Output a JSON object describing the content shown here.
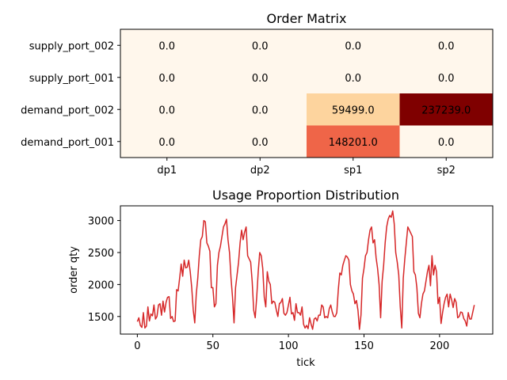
{
  "chart_data": [
    {
      "type": "heatmap",
      "title": "Order Matrix",
      "xlabel": "",
      "ylabel": "",
      "x_categories": [
        "dp1",
        "dp2",
        "sp1",
        "sp2"
      ],
      "y_categories": [
        "supply_port_002",
        "supply_port_001",
        "demand_port_002",
        "demand_port_001"
      ],
      "values": [
        [
          0.0,
          0.0,
          0.0,
          0.0
        ],
        [
          0.0,
          0.0,
          0.0,
          0.0
        ],
        [
          0.0,
          0.0,
          59499.0,
          237239.0
        ],
        [
          0.0,
          0.0,
          148201.0,
          0.0
        ]
      ],
      "cell_labels": [
        [
          "0.0",
          "0.0",
          "0.0",
          "0.0"
        ],
        [
          "0.0",
          "0.0",
          "0.0",
          "0.0"
        ],
        [
          "0.0",
          "0.0",
          "59499.0",
          "237239.0"
        ],
        [
          "0.0",
          "0.0",
          "148201.0",
          "0.0"
        ]
      ],
      "colormap": "OrRd",
      "vmin": 0,
      "vmax": 237239.0
    },
    {
      "type": "line",
      "title": "Usage Proportion Distribution",
      "xlabel": "tick",
      "ylabel": "order qty",
      "xlim": [
        -11.2,
        235.2
      ],
      "ylim": [
        1225,
        3230
      ],
      "xticks": [
        0,
        50,
        100,
        150,
        200
      ],
      "yticks": [
        1500,
        2000,
        2500,
        3000
      ],
      "color": "#d62728",
      "grid": false,
      "series": [
        {
          "x_start": 0,
          "values": [
            1420,
            1480,
            1360,
            1330,
            1560,
            1320,
            1350,
            1650,
            1430,
            1540,
            1510,
            1680,
            1460,
            1500,
            1680,
            1700,
            1520,
            1740,
            1570,
            1720,
            1800,
            1810,
            1470,
            1500,
            1420,
            1430,
            1920,
            1900,
            2100,
            2320,
            2130,
            2380,
            2260,
            2270,
            2380,
            2200,
            1950,
            1600,
            1400,
            1850,
            2100,
            2450,
            2700,
            2750,
            3000,
            2980,
            2650,
            2600,
            2520,
            1950,
            1950,
            1650,
            1700,
            2300,
            2500,
            2600,
            2750,
            2900,
            2950,
            3020,
            2700,
            2500,
            2100,
            1800,
            1400,
            1950,
            2150,
            2350,
            2650,
            2850,
            2700,
            2820,
            2900,
            2450,
            2400,
            2350,
            2050,
            1600,
            1480,
            1800,
            2200,
            2500,
            2450,
            2250,
            1800,
            1650,
            2200,
            2050,
            2000,
            1700,
            1740,
            1720,
            1600,
            1500,
            1700,
            1720,
            1780,
            1550,
            1520,
            1560,
            1680,
            1800,
            1540,
            1560,
            1440,
            1700,
            1560,
            1560,
            1520,
            1650,
            1380,
            1320,
            1360,
            1310,
            1480,
            1380,
            1300,
            1460,
            1480,
            1430,
            1520,
            1520,
            1680,
            1650,
            1480,
            1500,
            1480,
            1620,
            1680,
            1570,
            1500,
            1500,
            1560,
            1920,
            2180,
            2150,
            2300,
            2380,
            2450,
            2430,
            2380,
            2000,
            1900,
            1850,
            1700,
            1750,
            1600,
            1300,
            1520,
            2100,
            2250,
            2450,
            2500,
            2700,
            2850,
            2900,
            2650,
            2700,
            2420,
            2250,
            2000,
            1480,
            2050,
            2300,
            2650,
            2900,
            3020,
            3080,
            3050,
            3150,
            2950,
            2500,
            2350,
            2150,
            1650,
            1320,
            2100,
            2400,
            2650,
            2900,
            2850,
            2800,
            2750,
            2200,
            2150,
            1950,
            1550,
            1480,
            1700,
            1850,
            1900,
            2050,
            2200,
            2300,
            1980,
            2450,
            2150,
            2300,
            2200,
            1700,
            1800,
            1390,
            1560,
            1700,
            1800,
            1850,
            1650,
            1850,
            1760,
            1640,
            1780,
            1720,
            1480,
            1500,
            1570,
            1560,
            1470,
            1430,
            1350,
            1560,
            1460,
            1460,
            1570,
            1680
          ]
        }
      ]
    }
  ]
}
